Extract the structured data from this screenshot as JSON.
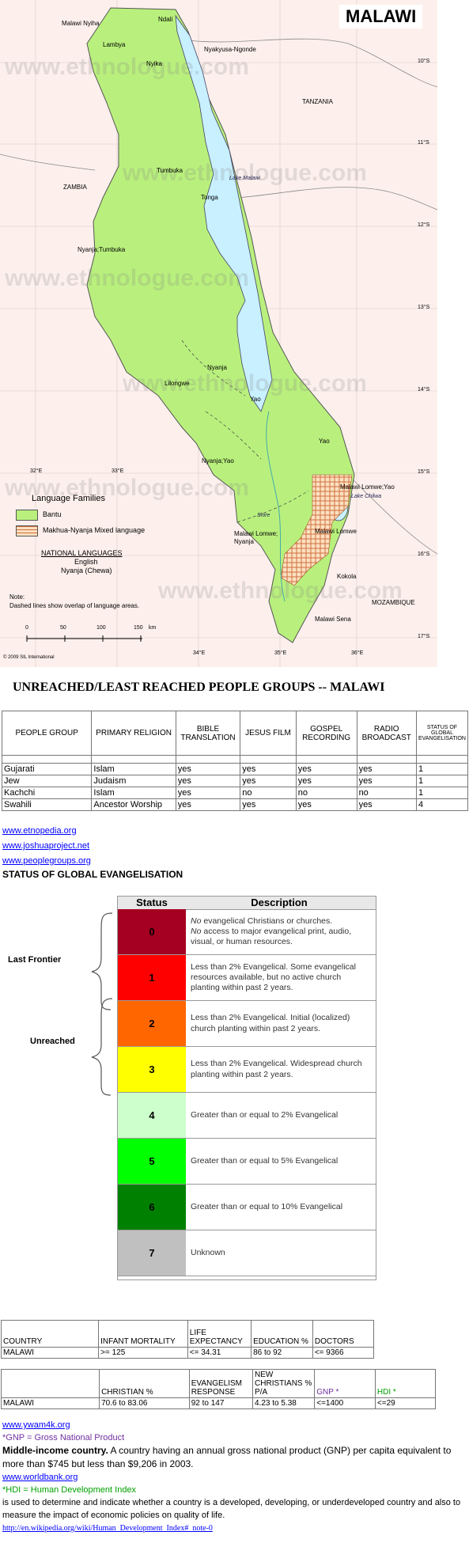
{
  "map": {
    "title": "MALAWI",
    "watermark": "www.ethnologue.com",
    "country_labels": [
      "TANZANIA",
      "ZAMBIA",
      "MOZAMBIQUE"
    ],
    "lakes": [
      "Lake Malawi",
      "Lake Chilwa"
    ],
    "river": "Shire",
    "capital": "Lilongwe",
    "language_labels": [
      "Malawi Nyiha",
      "Ndali",
      "Lambya",
      "Nyakyusa-Ngonde",
      "Nyika",
      "Tumbuka",
      "Tonga",
      "Nyanja;Tumbuka",
      "Nyanja",
      "Yao",
      "Yao",
      "Nyanja;Yao",
      "Malawi Lomwe;Yao",
      "Malawi Lomwe; Nyanja",
      "Malawi Lomwe",
      "Kokola",
      "Malawi Sena"
    ],
    "lat_labels": [
      "10°S",
      "11°S",
      "12°S",
      "13°S",
      "14°S",
      "15°S",
      "16°S",
      "17°S"
    ],
    "lon_labels": [
      "32°E",
      "33°E",
      "34°E",
      "35°E",
      "36°E"
    ],
    "legend": {
      "title": "Language Families",
      "items": [
        "Bantu",
        "Makhua-Nyanja Mixed language"
      ],
      "nat_title": "NATIONAL LANGUAGES",
      "nat_lang1": "English",
      "nat_lang2": "Nyanja (Chewa)",
      "note1": "Note:",
      "note2": "Dashed lines show overlap of language areas.",
      "scale": [
        "0",
        "50",
        "100",
        "150",
        "km"
      ]
    },
    "copyright": "© 2009 SIL International",
    "colors": {
      "land": "#b9f07d",
      "lake": "#c8f0ff",
      "background": "#fdf0ec",
      "mixed": "#e8a070"
    }
  },
  "main_heading": "UNREACHED/LEAST REACHED PEOPLE GROUPS -- MALAWI",
  "people_table": {
    "headers": [
      "PEOPLE GROUP",
      "PRIMARY RELIGION",
      "BIBLE TRANSLATION",
      "JESUS FILM",
      "GOSPEL RECORDING",
      "RADIO BROADCAST",
      "STATUS OF GLOBAL EVANGELISATION"
    ],
    "rows": [
      [
        "Gujarati",
        "Islam",
        "yes",
        "yes",
        "yes",
        "yes",
        "1"
      ],
      [
        "Jew",
        "Judaism",
        "yes",
        "yes",
        "yes",
        "yes",
        "1"
      ],
      [
        "Kachchi",
        "Islam",
        "yes",
        "no",
        "no",
        "no",
        "1"
      ],
      [
        "Swahili",
        "Ancestor Worship",
        "yes",
        "yes",
        "yes",
        "yes",
        "4"
      ]
    ]
  },
  "links1": [
    "www.etnopedia.org",
    "www.joshuaproject.net",
    "www.peoplegroups.org"
  ],
  "status_heading": "STATUS OF GLOBAL EVANGELISATION",
  "status_chart": {
    "col_status": "Status",
    "col_desc": "Description",
    "group_labels": [
      "Last Frontier",
      "Unreached"
    ],
    "rows": [
      {
        "n": "0",
        "color": "#a50021",
        "desc_em1": "No",
        "desc1": " evangelical Christians or churches.",
        "desc_em2": "No",
        "desc2": " access to major evangelical print, audio, visual, or human resources."
      },
      {
        "n": "1",
        "color": "#ff0000",
        "desc": "Less than 2% Evangelical.  Some evangelical resources available, but no active church planting within past 2 years."
      },
      {
        "n": "2",
        "color": "#ff6600",
        "desc": "Less than 2% Evangelical. Initial (localized) church planting within past 2 years."
      },
      {
        "n": "3",
        "color": "#ffff00",
        "desc": "Less than 2% Evangelical. Widespread church planting within past 2 years."
      },
      {
        "n": "4",
        "color": "#ccffcc",
        "desc": "Greater than or equal to 2% Evangelical"
      },
      {
        "n": "5",
        "color": "#00ff00",
        "desc": "Greater than or equal to 5% Evangelical"
      },
      {
        "n": "6",
        "color": "#008000",
        "desc": "Greater than or equal to 10% Evangelical"
      },
      {
        "n": "7",
        "color": "#c0c0c0",
        "desc": "Unknown"
      }
    ]
  },
  "stats_table1": {
    "headers": [
      "COUNTRY",
      "INFANT MORTALITY",
      "LIFE EXPECTANCY",
      "EDUCATION %",
      "DOCTORS"
    ],
    "row": [
      "MALAWI",
      ">= 125",
      "<= 34.31",
      "86 to 92",
      "<= 9366"
    ]
  },
  "stats_table2": {
    "headers": [
      "",
      "CHRISTIAN %",
      "EVANGELISM RESPONSE",
      "NEW CHRISTIANS % P/A",
      "GNP *",
      "HDI *"
    ],
    "row": [
      "MALAWI",
      "70.6 to 83.06",
      "92 to 147",
      "4.23 to 5.38",
      "<=1400",
      "<=29"
    ]
  },
  "footer": {
    "link1": "www.ywam4k.org",
    "gnp_def": "*GNP = Gross National Product",
    "income_bold": "Middle-income country.",
    "income_text": " A country having an annual gross national product (GNP) per capita equivalent to more than $745 but less than $9,206 in 2003.",
    "link2": "www.worldbank.org",
    "hdi_def": "*HDI = Human Development Index",
    "hdi_text": "is used to determine and indicate whether a country is a developed, developing, or underdeveloped country and also to measure the impact of economic policies on quality of life.",
    "link3": "http://en.wikipedia.org/wiki/Human_Development_Index#_note-0"
  }
}
